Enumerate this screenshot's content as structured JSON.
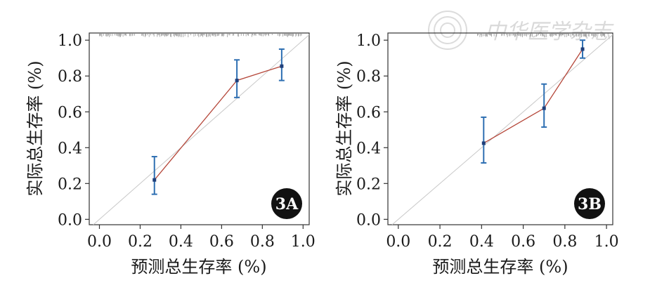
{
  "watermark": {
    "text": "中华医学杂志"
  },
  "chart_data": [
    {
      "type": "line",
      "panel_label": "3A",
      "xlabel": "预测总生存率 (%)",
      "ylabel": "实际总生存率 (%)",
      "xlim": [
        -0.05,
        1.03
      ],
      "ylim": [
        -0.03,
        1.04
      ],
      "xticks": [
        "0.0",
        "0.2",
        "0.4",
        "0.6",
        "0.8",
        "1.0"
      ],
      "yticks": [
        "0.0",
        "0.2",
        "0.4",
        "0.6",
        "0.8",
        "1.0"
      ],
      "reference_line": "diagonal",
      "rug_top": true,
      "series": [
        {
          "x": [
            0.27,
            0.675,
            0.895
          ],
          "y": [
            0.22,
            0.775,
            0.855
          ],
          "error_low": [
            0.14,
            0.68,
            0.775
          ],
          "error_high": [
            0.35,
            0.89,
            0.95
          ]
        }
      ],
      "colors": {
        "line": "#b5473a",
        "error_bar": "#2e6fb2",
        "reference": "#c8c8c8"
      }
    },
    {
      "type": "line",
      "panel_label": "3B",
      "xlabel": "预测总生存率 (%)",
      "ylabel": "实际总生存率 (%)",
      "xlim": [
        -0.05,
        1.03
      ],
      "ylim": [
        -0.03,
        1.04
      ],
      "xticks": [
        "0.0",
        "0.2",
        "0.4",
        "0.6",
        "0.8",
        "1.0"
      ],
      "yticks": [
        "0.0",
        "0.2",
        "0.4",
        "0.6",
        "0.8",
        "1.0"
      ],
      "reference_line": "diagonal",
      "rug_top": true,
      "series": [
        {
          "x": [
            0.41,
            0.7,
            0.885
          ],
          "y": [
            0.425,
            0.62,
            0.95
          ],
          "error_low": [
            0.315,
            0.515,
            0.9
          ],
          "error_high": [
            0.57,
            0.755,
            1.0
          ]
        }
      ],
      "colors": {
        "line": "#b5473a",
        "error_bar": "#2e6fb2",
        "reference": "#c8c8c8"
      }
    }
  ]
}
